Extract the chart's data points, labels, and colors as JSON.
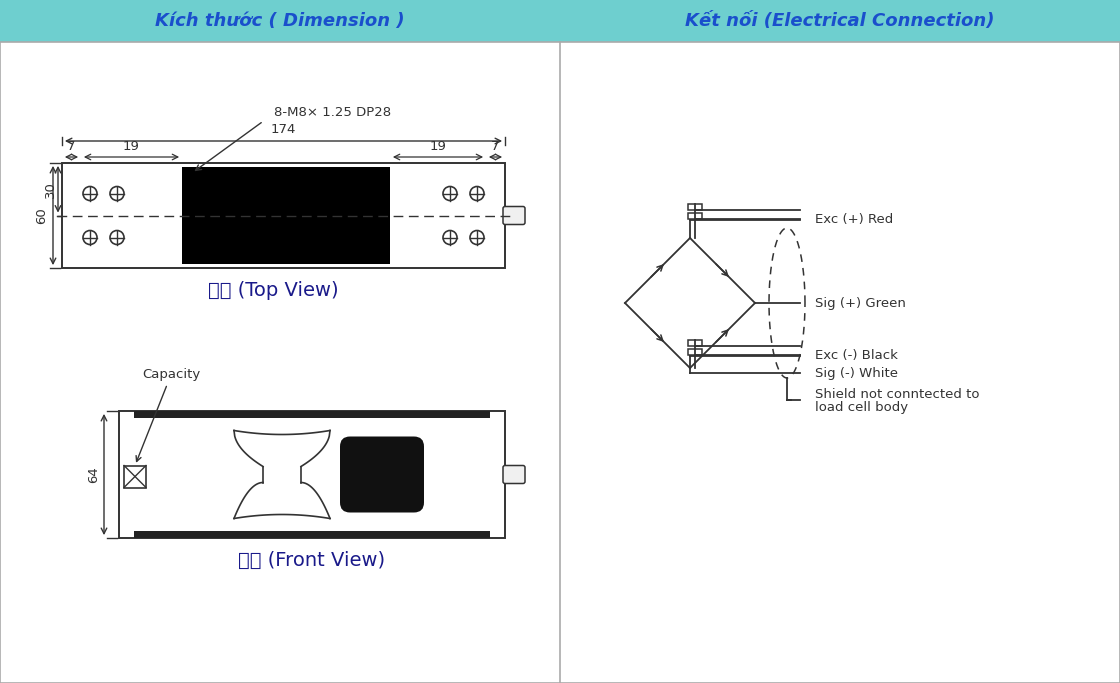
{
  "header_bg": "#6ECFCF",
  "header_text_color": "#1a4fcc",
  "header_left": "Kích thước ( Dimension )",
  "header_right": "Kết nối (Electrical Connection)",
  "bg_color": "#ffffff",
  "dim_color": "#333333",
  "title_top_view": "俧视 (Top View)",
  "title_front_view": "主视 (Front View)",
  "wire_labels": [
    "Exc (+) Red",
    "Sig (+) Green",
    "Exc (-) Black",
    "Sig (-) White",
    "Shield not conntected to",
    "load cell body"
  ],
  "annotation_label": "8-M8× 1.25 DP28",
  "capacity_label": "Capacity"
}
